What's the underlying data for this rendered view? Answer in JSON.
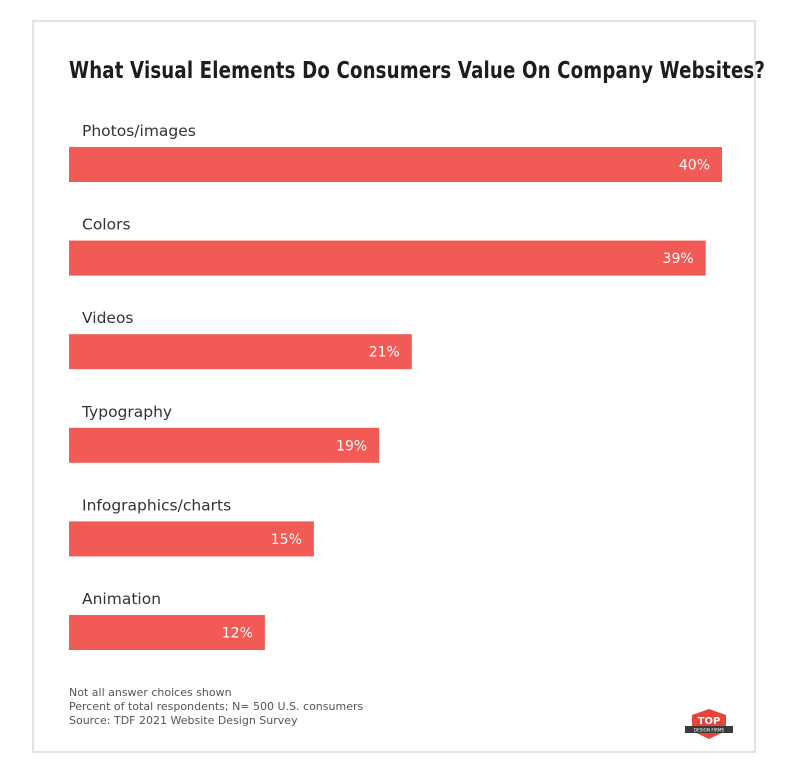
{
  "chart_data": {
    "type": "bar",
    "orientation": "horizontal",
    "title": "What Visual Elements Do Consumers Value On Company Websites?",
    "categories": [
      "Photos/images",
      "Colors",
      "Videos",
      "Typography",
      "Infographics/charts",
      "Animation"
    ],
    "values": [
      40,
      39,
      21,
      19,
      15,
      12
    ],
    "value_labels": [
      "40%",
      "39%",
      "21%",
      "19%",
      "15%",
      "12%"
    ],
    "xlim": [
      0,
      40
    ],
    "grid": false,
    "bar_color": "#f25a55"
  },
  "footnotes": {
    "line1": "Not all answer choices shown",
    "line2": "Percent of total respondents; N= 500 U.S. consumers",
    "line3": "Source: TDF 2021 Website Design Survey"
  },
  "logo": {
    "text_top": "TOP",
    "text_bottom": "DESIGN FIRMS",
    "color": "#e8443a"
  }
}
